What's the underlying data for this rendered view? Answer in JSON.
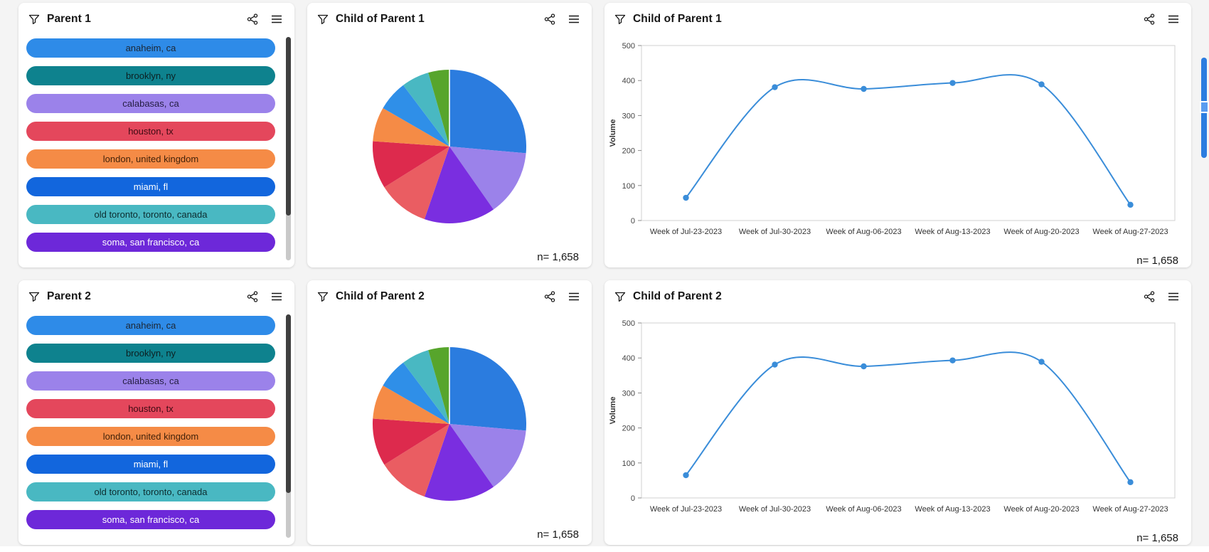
{
  "page": {
    "background": "#f4f4f4",
    "panel_background": "#ffffff",
    "accent_blue": "#2b7de0"
  },
  "panels": [
    {
      "id": "parent1",
      "title": "Parent 1",
      "type": "filter-list"
    },
    {
      "id": "pie1",
      "title": "Child of Parent 1",
      "type": "pie",
      "n_label": "n= 1,658"
    },
    {
      "id": "line1",
      "title": "Child of Parent 1",
      "type": "line",
      "n_label": "n= 1,658"
    },
    {
      "id": "parent2",
      "title": "Parent 2",
      "type": "filter-list"
    },
    {
      "id": "pie2",
      "title": "Child of Parent 2",
      "type": "pie",
      "n_label": "n= 1,658"
    },
    {
      "id": "line2",
      "title": "Child of Parent 2",
      "type": "line",
      "n_label": "n= 1,658"
    }
  ],
  "filter_items": [
    {
      "label": "anaheim, ca",
      "color": "#2e8be8",
      "text": "#1c2633"
    },
    {
      "label": "brooklyn, ny",
      "color": "#0e828e",
      "text": "#0c2022"
    },
    {
      "label": "calabasas, ca",
      "color": "#9b82ea",
      "text": "#241d42"
    },
    {
      "label": "houston, tx",
      "color": "#e4475c",
      "text": "#3c0a12"
    },
    {
      "label": "london, united kingdom",
      "color": "#f58b46",
      "text": "#42220a"
    },
    {
      "label": "miami, fl",
      "color": "#1266dd",
      "text": "#ffffff"
    },
    {
      "label": "old toronto, toronto, canada",
      "color": "#49b8c2",
      "text": "#0c2c2f"
    },
    {
      "label": "soma, san francisco, ca",
      "color": "#6d28d9",
      "text": "#ffffff"
    }
  ],
  "chart_data": [
    {
      "id": "pie1",
      "type": "pie",
      "title": "Child of Parent 1",
      "n": "1,658",
      "slices": [
        {
          "color": "#2b7cdf",
          "deg": 95
        },
        {
          "color": "#9b82ea",
          "deg": 50
        },
        {
          "color": "#7a2ee0",
          "deg": 54
        },
        {
          "color": "#ea5d62",
          "deg": 39
        },
        {
          "color": "#dd2a4d",
          "deg": 36
        },
        {
          "color": "#f58b46",
          "deg": 26
        },
        {
          "color": "#2f8fe8",
          "deg": 23
        },
        {
          "color": "#49b8c2",
          "deg": 21
        },
        {
          "color": "#57a52c",
          "deg": 16
        }
      ]
    },
    {
      "id": "line1",
      "type": "line",
      "title": "Child of Parent 1",
      "ylabel": "Volume",
      "ylim": [
        0,
        500
      ],
      "yticks": [
        0,
        100,
        200,
        300,
        400,
        500
      ],
      "categories": [
        "Week of Jul-23-2023",
        "Week of Jul-30-2023",
        "Week of Aug-06-2023",
        "Week of Aug-13-2023",
        "Week of Aug-20-2023",
        "Week of Aug-27-2023"
      ],
      "values": [
        65,
        381,
        376,
        393,
        389,
        45
      ],
      "line_color": "#3a8dd9",
      "n": "1,658",
      "grid": false,
      "legend": "none"
    },
    {
      "id": "pie2",
      "type": "pie",
      "title": "Child of Parent 2",
      "n": "1,658",
      "slices": [
        {
          "color": "#2b7cdf",
          "deg": 95
        },
        {
          "color": "#9b82ea",
          "deg": 50
        },
        {
          "color": "#7a2ee0",
          "deg": 54
        },
        {
          "color": "#ea5d62",
          "deg": 39
        },
        {
          "color": "#dd2a4d",
          "deg": 36
        },
        {
          "color": "#f58b46",
          "deg": 26
        },
        {
          "color": "#2f8fe8",
          "deg": 23
        },
        {
          "color": "#49b8c2",
          "deg": 21
        },
        {
          "color": "#57a52c",
          "deg": 16
        }
      ]
    },
    {
      "id": "line2",
      "type": "line",
      "title": "Child of Parent 2",
      "ylabel": "Volume",
      "ylim": [
        0,
        500
      ],
      "yticks": [
        0,
        100,
        200,
        300,
        400,
        500
      ],
      "categories": [
        "Week of Jul-23-2023",
        "Week of Jul-30-2023",
        "Week of Aug-06-2023",
        "Week of Aug-13-2023",
        "Week of Aug-20-2023",
        "Week of Aug-27-2023"
      ],
      "values": [
        65,
        381,
        376,
        393,
        389,
        45
      ],
      "line_color": "#3a8dd9",
      "n": "1,658",
      "grid": false,
      "legend": "none"
    }
  ]
}
